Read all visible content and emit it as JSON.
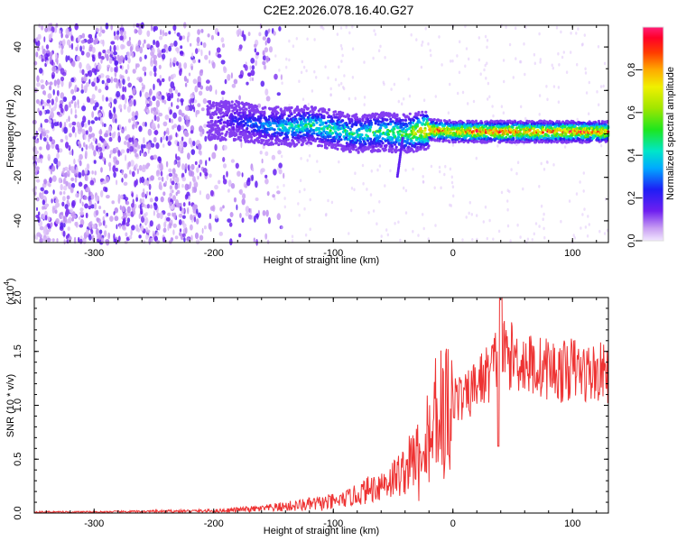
{
  "chart_data": [
    {
      "type": "heatmap",
      "title": "C2E2.2026.078.16.40.G27",
      "xlabel": "Height of straight line (km)",
      "ylabel": "Frequency (Hz)",
      "xlim": [
        -350,
        130
      ],
      "ylim": [
        -50,
        50
      ],
      "x_ticks": [
        -300,
        -200,
        -100,
        0,
        100
      ],
      "y_ticks": [
        -40,
        -20,
        0,
        20,
        40
      ],
      "colorbar": {
        "label": "Normalized spectral amplitude",
        "range": [
          0.0,
          1.0
        ],
        "ticks": [
          0.0,
          0.2,
          0.4,
          0.6,
          0.8
        ],
        "tick_labels": [
          "0.0",
          "0.2",
          "0.4",
          "0.6",
          "0.8"
        ]
      },
      "signal_track": {
        "x": [
          -200,
          -180,
          -160,
          -140,
          -120,
          -100,
          -80,
          -60,
          -40,
          -20,
          0,
          20,
          40,
          60,
          80,
          100,
          130
        ],
        "frequency_hz": [
          6,
          6,
          4,
          3,
          4,
          2,
          0,
          1,
          0,
          2,
          1,
          1,
          1,
          1,
          1,
          1,
          1
        ],
        "peak_amplitude": [
          0.15,
          0.25,
          0.35,
          0.45,
          0.5,
          0.5,
          0.5,
          0.55,
          0.6,
          0.95,
          0.85,
          0.95,
          0.95,
          0.95,
          0.9,
          0.95,
          0.9
        ]
      },
      "noise_region": [
        -350,
        -150
      ]
    },
    {
      "type": "line",
      "xlabel": "Height of straight line (km)",
      "ylabel": "SNR (10 * v/v)",
      "y_multiplier": "(x10",
      "y_multiplier_exp": "4",
      "y_multiplier_close": ")",
      "xlim": [
        -350,
        130
      ],
      "ylim": [
        0.0,
        2.0
      ],
      "x_ticks": [
        -300,
        -200,
        -100,
        0,
        100
      ],
      "y_ticks": [
        0.0,
        0.5,
        1.0,
        1.5,
        2.0
      ],
      "y_tick_labels": [
        "0.0",
        "0.5",
        "1.0",
        "1.5",
        "2.0"
      ],
      "series": [
        {
          "name": "SNR",
          "color": "#ee3333",
          "x": [
            -350,
            -300,
            -250,
            -200,
            -180,
            -160,
            -140,
            -120,
            -100,
            -90,
            -80,
            -70,
            -60,
            -50,
            -40,
            -30,
            -20,
            -10,
            0,
            10,
            20,
            30,
            40,
            50,
            60,
            70,
            80,
            90,
            100,
            110,
            120,
            130
          ],
          "y": [
            0.01,
            0.01,
            0.015,
            0.02,
            0.03,
            0.04,
            0.06,
            0.08,
            0.1,
            0.13,
            0.17,
            0.22,
            0.27,
            0.32,
            0.4,
            0.55,
            0.8,
            1.0,
            1.1,
            1.05,
            1.2,
            1.3,
            1.5,
            1.45,
            1.4,
            1.35,
            1.35,
            1.3,
            1.35,
            1.3,
            1.3,
            1.3
          ]
        }
      ]
    }
  ],
  "colors": {
    "line": "#ee3333",
    "axis": "#000000"
  }
}
